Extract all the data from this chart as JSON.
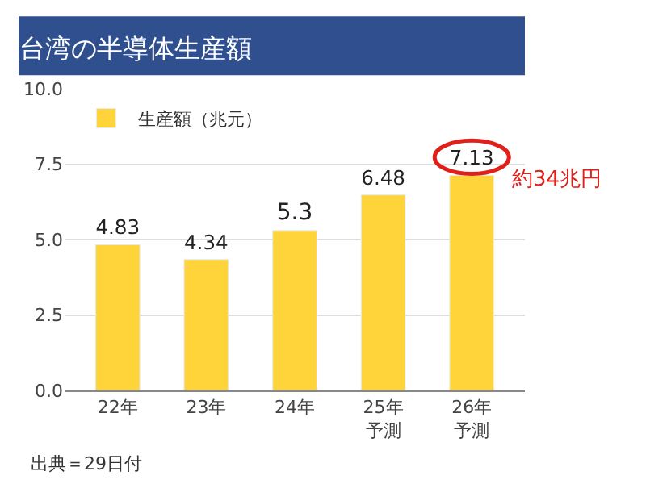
{
  "chart_data": {
    "type": "bar",
    "title": "台湾の半導体生産額",
    "categories": [
      "22年",
      "23年",
      "24年",
      "25年予測",
      "26年予測"
    ],
    "series": [
      {
        "name": "生産額（兆元）",
        "color": "#ffd43b",
        "values": [
          4.83,
          4.34,
          5.3,
          6.48,
          7.13
        ]
      }
    ],
    "data_labels": true,
    "ylim": [
      0,
      10
    ],
    "yticks": [
      {
        "value": 0,
        "label": "0.0"
      },
      {
        "value": 2.5,
        "label": "2.5"
      },
      {
        "value": 5,
        "label": "5.0"
      },
      {
        "value": 7.5,
        "label": "7.5"
      },
      {
        "value": 10,
        "label": "10.0"
      }
    ],
    "grid": "y",
    "legend": "top left",
    "annotations": [
      "約34兆円",
      "出典＝29日付"
    ]
  }
}
